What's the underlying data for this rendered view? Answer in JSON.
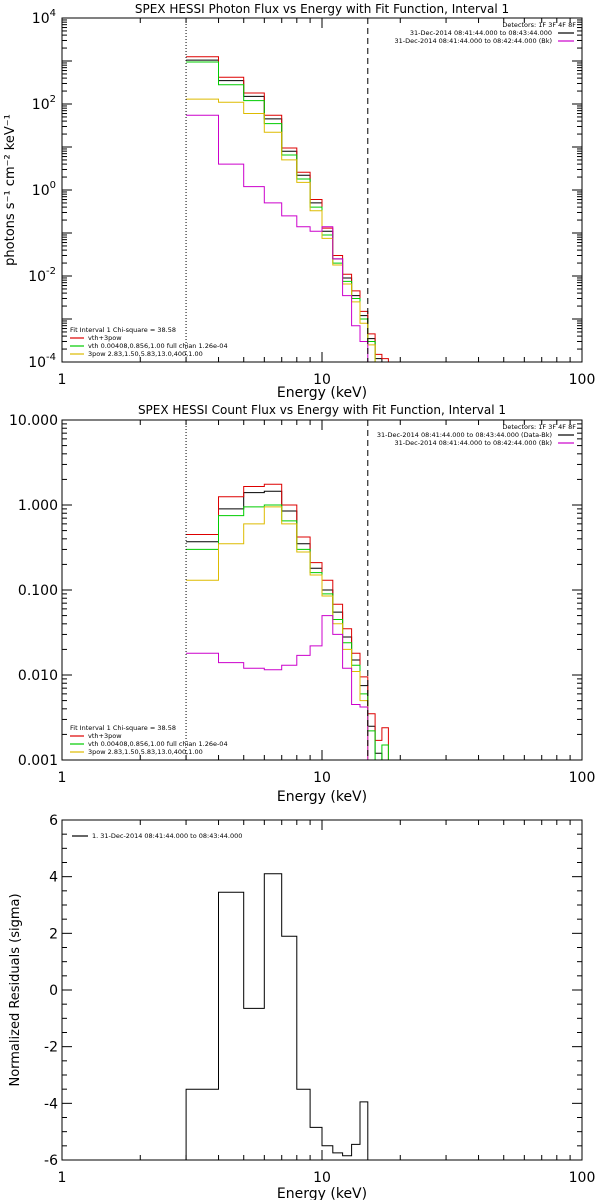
{
  "figure": {
    "background": "#ffffff",
    "axis_color": "#000000"
  },
  "chart_data": [
    {
      "type": "line",
      "title": "SPEX HESSI Photon Flux vs Energy with Fit Function, Interval 1",
      "xlabel": "Energy (keV)",
      "ylabel": "photons s⁻¹ cm⁻² keV⁻¹",
      "xscale": "log",
      "yscale": "log",
      "xlim": [
        1,
        100
      ],
      "ylim": [
        0.0001,
        10000
      ],
      "xticks": [
        1,
        10,
        100
      ],
      "xtick_labels": [
        "1",
        "10",
        "100"
      ],
      "yticks": [
        0.0001,
        0.01,
        1,
        100,
        10000
      ],
      "ytick_labels": [
        {
          "base": "10",
          "exp": "-4"
        },
        {
          "base": "10",
          "exp": "-2"
        },
        {
          "base": "10",
          "exp": "0"
        },
        {
          "base": "10",
          "exp": "2"
        },
        {
          "base": "10",
          "exp": "4"
        }
      ],
      "vlines": [
        {
          "x": 3.0,
          "style": "dotted"
        },
        {
          "x": 15.0,
          "style": "dashed"
        }
      ],
      "legend_top": {
        "position": "top-right",
        "header": "Detectors: 1F 3F 4F 8F",
        "entries": [
          {
            "text": "31-Dec-2014 08:41:44.000 to 08:43:44.000",
            "color": "#000000"
          },
          {
            "text": "31-Dec-2014 08:41:44.000 to 08:42:44.000 (Bk)",
            "color": "#cc00cc"
          }
        ]
      },
      "legend_bottom": {
        "position": "bottom-left",
        "header": "Fit Interval 1   Chi-square = 38.58",
        "entries": [
          {
            "text": "vth+3pow",
            "color": "#dd0000"
          },
          {
            "text": "vth 0.00408,0.856,1.00  full chian 1.26e-04",
            "color": "#00cc00"
          },
          {
            "text": "3pow 2.83,1.50,5.83,13.0,400,1.00",
            "color": "#ddbb00"
          }
        ]
      },
      "bin_edges": [
        3.0,
        4.0,
        5.0,
        6.0,
        7.0,
        8.0,
        9.0,
        10.0,
        11.0,
        12.0,
        13.0,
        14.0,
        15.0,
        16.0,
        17.0,
        18.0
      ],
      "series": [
        {
          "color": "#000000",
          "values": [
            1050,
            350,
            150,
            45,
            8,
            2.2,
            0.5,
            0.11,
            0.025,
            0.009,
            0.0035,
            0.0012,
            0.00035,
            0.00012,
            null
          ]
        },
        {
          "color": "#dd0000",
          "values": [
            1250,
            420,
            180,
            55,
            9.5,
            2.6,
            0.6,
            0.13,
            0.03,
            0.011,
            0.0045,
            0.0015,
            0.00045,
            0.00015,
            0.00012
          ]
        },
        {
          "color": "#00cc00",
          "values": [
            950,
            280,
            120,
            35,
            6.5,
            1.8,
            0.4,
            0.09,
            0.02,
            0.0075,
            0.003,
            0.001,
            0.0003,
            0.0001,
            0.0001
          ]
        },
        {
          "color": "#ddbb00",
          "values": [
            130,
            110,
            60,
            22,
            5,
            1.5,
            0.33,
            0.075,
            0.018,
            0.0065,
            0.0025,
            0.0008,
            0.00025,
            null,
            null
          ]
        },
        {
          "color": "#cc00cc",
          "values": [
            55,
            4,
            1.2,
            0.5,
            0.25,
            0.14,
            0.11,
            0.14,
            0.025,
            0.0035,
            0.0007,
            0.0003,
            null,
            null,
            null
          ]
        }
      ]
    },
    {
      "type": "line",
      "title": "SPEX HESSI Count Flux vs Energy with Fit Function, Interval 1",
      "xlabel": "Energy (keV)",
      "ylabel": "",
      "xscale": "log",
      "yscale": "log",
      "xlim": [
        1,
        100
      ],
      "ylim": [
        0.001,
        10
      ],
      "xticks": [
        1,
        10,
        100
      ],
      "xtick_labels": [
        "1",
        "10",
        "100"
      ],
      "yticks": [
        0.001,
        0.01,
        0.1,
        1,
        10
      ],
      "ytick_labels": [
        "0.001",
        "0.010",
        "0.100",
        "1.000",
        "10.000"
      ],
      "vlines": [
        {
          "x": 3.0,
          "style": "dotted"
        },
        {
          "x": 15.0,
          "style": "dashed"
        }
      ],
      "legend_top": {
        "position": "top-right",
        "header": "Detectors: 1F 3F 4F 8F",
        "entries": [
          {
            "text": "31-Dec-2014 08:41:44.000 to 08:43:44.000 (Data-Bk)",
            "color": "#000000"
          },
          {
            "text": "31-Dec-2014 08:41:44.000 to 08:42:44.000 (Bk)",
            "color": "#cc00cc"
          }
        ]
      },
      "legend_bottom": {
        "position": "bottom-left",
        "header": "Fit Interval 1   Chi-square = 38.58",
        "entries": [
          {
            "text": "vth+3pow",
            "color": "#dd0000"
          },
          {
            "text": "vth 0.00408,0.856,1.00  full chian 1.26e-04",
            "color": "#00cc00"
          },
          {
            "text": "3pow 2.83,1.50,5.83,13.0,400,1.00",
            "color": "#ddbb00"
          }
        ]
      },
      "bin_edges": [
        3.0,
        4.0,
        5.0,
        6.0,
        7.0,
        8.0,
        9.0,
        10.0,
        11.0,
        12.0,
        13.0,
        14.0,
        15.0,
        16.0,
        17.0,
        18.0
      ],
      "series": [
        {
          "color": "#000000",
          "values": [
            0.37,
            0.9,
            1.4,
            1.45,
            0.85,
            0.35,
            0.18,
            0.1,
            0.055,
            0.028,
            0.015,
            0.0075,
            0.0025,
            0.0012,
            null
          ]
        },
        {
          "color": "#dd0000",
          "values": [
            0.45,
            1.25,
            1.65,
            1.75,
            1.0,
            0.42,
            0.21,
            0.13,
            0.068,
            0.035,
            0.018,
            0.0095,
            0.0035,
            0.0017,
            0.0024
          ]
        },
        {
          "color": "#00cc00",
          "values": [
            0.3,
            0.75,
            0.95,
            1.0,
            0.65,
            0.3,
            0.16,
            0.09,
            0.045,
            0.024,
            0.013,
            0.006,
            0.0022,
            0.001,
            0.0015
          ]
        },
        {
          "color": "#ddbb00",
          "values": [
            0.13,
            0.35,
            0.6,
            0.95,
            0.6,
            0.28,
            0.15,
            0.085,
            0.04,
            0.02,
            0.011,
            0.005,
            null,
            null,
            null
          ]
        },
        {
          "color": "#cc00cc",
          "values": [
            0.018,
            0.014,
            0.012,
            0.0115,
            0.013,
            0.017,
            0.022,
            0.05,
            0.03,
            0.012,
            0.0045,
            0.0042,
            null,
            null,
            null
          ]
        }
      ]
    },
    {
      "type": "line",
      "title": "",
      "xlabel": "Energy (keV)",
      "ylabel": "Normalized Residuals (sigma)",
      "xscale": "log",
      "yscale": "linear",
      "xlim": [
        1,
        100
      ],
      "ylim": [
        -6,
        6
      ],
      "xticks": [
        1,
        10,
        100
      ],
      "xtick_labels": [
        "1",
        "10",
        "100"
      ],
      "yticks": [
        -6,
        -4,
        -2,
        0,
        2,
        4,
        6
      ],
      "ytick_labels": [
        "-6",
        "-4",
        "-2",
        "0",
        "2",
        "4",
        "6"
      ],
      "legend_top": {
        "position": "top-left",
        "header": "",
        "entries": [
          {
            "text": "1. 31-Dec-2014 08:41:44.000 to 08:43:44.000",
            "color": "#000000"
          }
        ]
      },
      "bin_edges": [
        3.0,
        4.0,
        5.0,
        6.0,
        7.0,
        8.0,
        9.0,
        10.0,
        11.0,
        12.0,
        13.0,
        14.0,
        15.0
      ],
      "series": [
        {
          "color": "#000000",
          "values": [
            -3.5,
            3.45,
            -0.65,
            4.1,
            1.9,
            -3.5,
            -4.85,
            -5.5,
            -5.75,
            -5.85,
            -5.45,
            -3.95
          ]
        }
      ]
    }
  ]
}
